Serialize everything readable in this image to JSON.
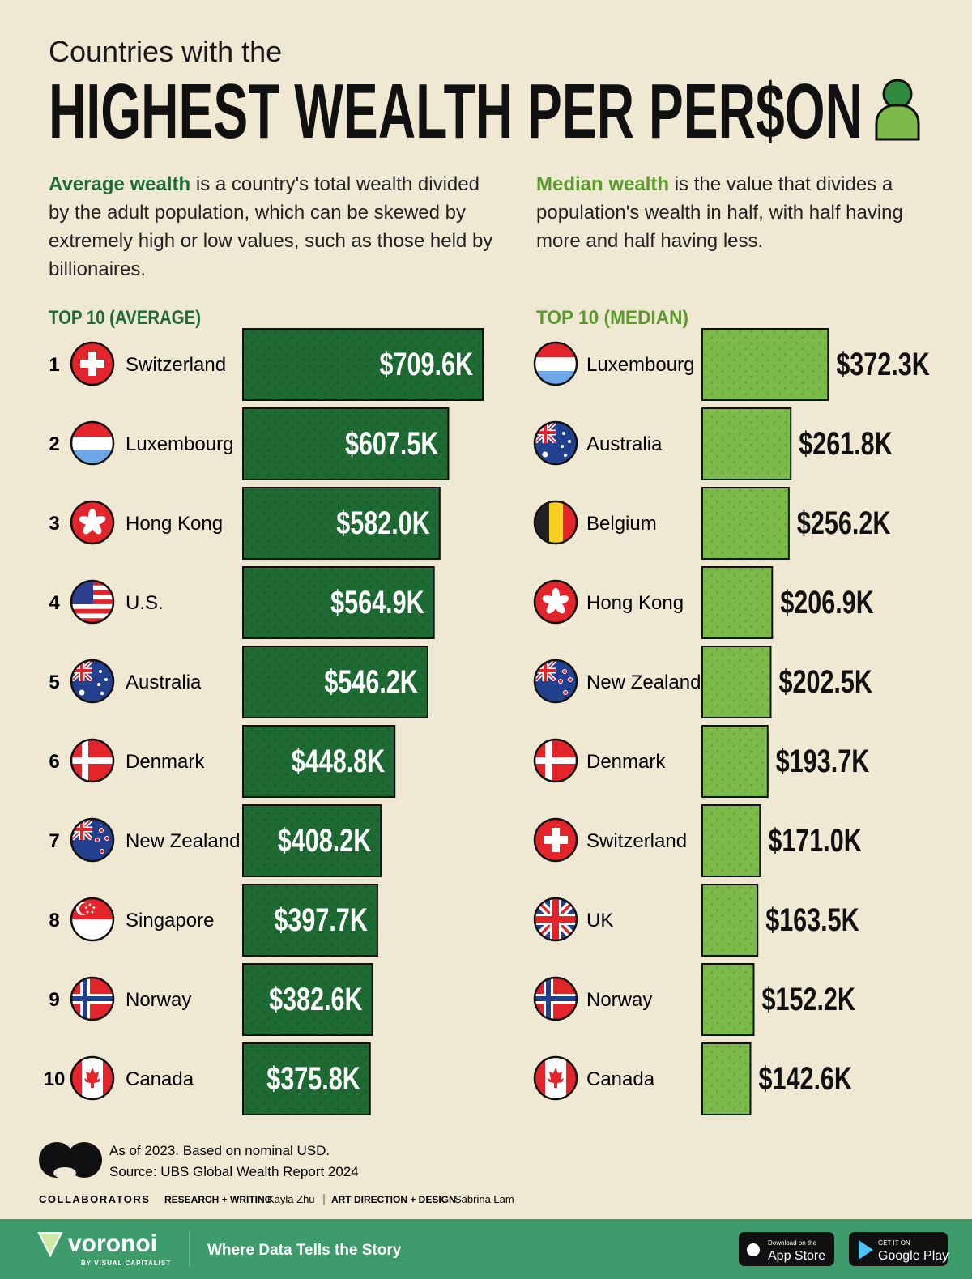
{
  "header": {
    "title_line1": "Countries with the",
    "title_line2": "HIGHEST WEALTH PER PER$ON"
  },
  "descriptions": [
    {
      "term": "Average wealth",
      "text": "is a country's total wealth divided by the adult population, which can be skewed by extremely high or low values, such as those held by billionaires."
    },
    {
      "term": "Median wealth",
      "text": "is the value that divides a population's wealth in half, with half having more and half having less."
    }
  ],
  "chart_data": [
    {
      "type": "bar",
      "title": "TOP 10 (AVERAGE)",
      "ranks": [
        1,
        2,
        3,
        4,
        5,
        6,
        7,
        8,
        9,
        10
      ],
      "categories": [
        "Switzerland",
        "Luxembourg",
        "Hong Kong",
        "U.S.",
        "Australia",
        "Denmark",
        "New Zealand",
        "Singapore",
        "Norway",
        "Canada"
      ],
      "values": [
        709.6,
        607.5,
        582.0,
        564.9,
        546.2,
        448.8,
        408.2,
        397.7,
        382.6,
        375.8
      ],
      "value_labels": [
        "$709.6K",
        "$607.5K",
        "$582.0K",
        "$564.9K",
        "$546.2K",
        "$448.8K",
        "$408.2K",
        "$397.7K",
        "$382.6K",
        "$375.8K"
      ],
      "color": "#1e6a33",
      "label_position": "inside"
    },
    {
      "type": "bar",
      "title": "TOP 10 (MEDIAN)",
      "categories": [
        "Luxembourg",
        "Australia",
        "Belgium",
        "Hong Kong",
        "New Zealand",
        "Denmark",
        "Switzerland",
        "UK",
        "Norway",
        "Canada"
      ],
      "values": [
        372.3,
        261.8,
        256.2,
        206.9,
        202.5,
        193.7,
        171.0,
        163.5,
        152.2,
        142.6
      ],
      "value_labels": [
        "$372.3K",
        "$261.8K",
        "$256.2K",
        "$206.9K",
        "$202.5K",
        "$193.7K",
        "$171.0K",
        "$163.5K",
        "$152.2K",
        "$142.6K"
      ],
      "color": "#7cbb4a",
      "label_position": "outside"
    }
  ],
  "footer": {
    "note": "As of 2023. Based on nominal USD.",
    "source": "Source: UBS Global Wealth Report 2024",
    "collaborators": "COLLABORATORS",
    "role1": "RESEARCH + WRITING",
    "person1": "Kayla Zhu",
    "role2": "ART DIRECTION + DESIGN",
    "person2": "Sabrina Lam"
  },
  "banner": {
    "brand": "voronoi",
    "byline": "BY VISUAL CAPITALIST",
    "tagline": "Where Data Tells the Story",
    "appstore_small": "Download on the",
    "appstore": "App Store",
    "googleplay_small": "GET IT ON",
    "googleplay": "Google Play"
  }
}
